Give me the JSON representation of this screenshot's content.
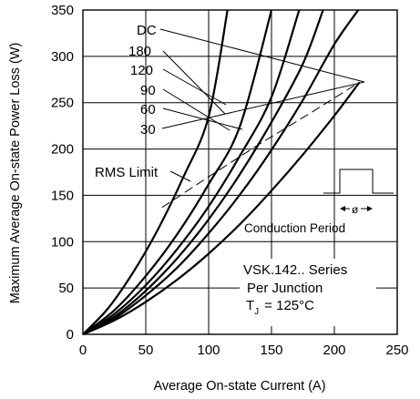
{
  "chart_data": {
    "type": "line",
    "xlabel": "Average On-state Current (A)",
    "ylabel": "Maximum Average On-state Power Loss (W)",
    "xlim": [
      0,
      250
    ],
    "ylim": [
      0,
      350
    ],
    "x_ticks": [
      0,
      50,
      100,
      150,
      200,
      250
    ],
    "y_ticks": [
      0,
      50,
      100,
      150,
      200,
      250,
      300,
      350
    ],
    "grid": true,
    "series": [
      {
        "name": "DC",
        "x": [
          0,
          20,
          40,
          60,
          80,
          100,
          115
        ],
        "y": [
          0,
          28,
          67,
          114,
          170,
          235,
          350
        ]
      },
      {
        "name": "180",
        "x": [
          0,
          25,
          50,
          75,
          100,
          125,
          150
        ],
        "y": [
          0,
          26,
          63,
          108,
          162,
          225,
          350
        ]
      },
      {
        "name": "120",
        "x": [
          0,
          25,
          50,
          75,
          100,
          125,
          150,
          172
        ],
        "y": [
          0,
          22,
          53,
          92,
          138,
          193,
          256,
          350
        ]
      },
      {
        "name": "90",
        "x": [
          0,
          25,
          50,
          75,
          100,
          125,
          150,
          175,
          191
        ],
        "y": [
          0,
          19,
          47,
          82,
          124,
          173,
          229,
          292,
          350
        ]
      },
      {
        "name": "60",
        "x": [
          0,
          25,
          50,
          75,
          100,
          125,
          150,
          175,
          200,
          219
        ],
        "y": [
          0,
          17,
          42,
          72,
          109,
          151,
          199,
          253,
          313,
          350
        ]
      },
      {
        "name": "30",
        "x": [
          0,
          25,
          50,
          75,
          100,
          125,
          150,
          175,
          200,
          220
        ],
        "y": [
          0,
          15,
          35,
          59,
          87,
          119,
          155,
          194,
          236,
          272
        ]
      }
    ],
    "rms_limit": {
      "label": "RMS Limit",
      "x": [
        63,
        100,
        140,
        180,
        220
      ],
      "y": [
        137,
        170,
        205,
        238,
        272
      ]
    },
    "inset_label": "Conduction Period",
    "inset_symbol": "ø",
    "annotation_lines": [
      "VSK.142.. Series",
      "Per Junction",
      "T",
      "J",
      "= 125°C"
    ]
  }
}
